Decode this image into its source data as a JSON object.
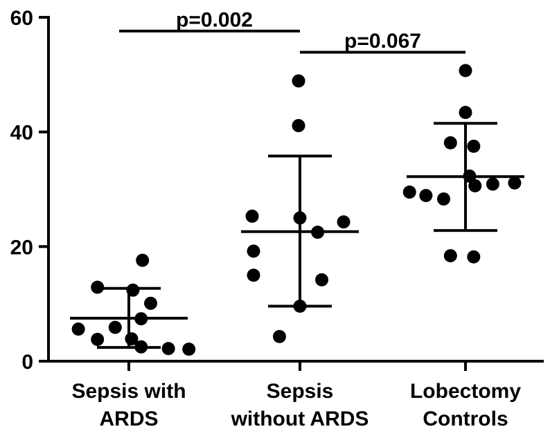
{
  "chart_data": {
    "type": "scatter",
    "categories": [
      [
        "Sepsis with",
        "ARDS"
      ],
      [
        "Sepsis",
        "without ARDS"
      ],
      [
        "Lobectomy",
        "Controls"
      ]
    ],
    "ylim": [
      0,
      60
    ],
    "yticks": [
      "0",
      "20",
      "40",
      "60"
    ],
    "grid": false,
    "series": [
      {
        "points": [
          {
            "dx": -0.37,
            "y": 5.6
          },
          {
            "dx": -0.23,
            "y": 3.8
          },
          {
            "dx": -0.23,
            "y": 12.9
          },
          {
            "dx": -0.1,
            "y": 5.9
          },
          {
            "dx": 0.02,
            "y": 3.9
          },
          {
            "dx": 0.03,
            "y": 12.4
          },
          {
            "dx": 0.09,
            "y": 2.5
          },
          {
            "dx": 0.1,
            "y": 17.6
          },
          {
            "dx": 0.09,
            "y": 7.4
          },
          {
            "dx": 0.16,
            "y": 10.1
          },
          {
            "dx": 0.29,
            "y": 2.2
          },
          {
            "dx": 0.44,
            "y": 2.1
          }
        ],
        "mean": 7.5,
        "sd_upper": 12.7,
        "sd_lower": 2.4
      },
      {
        "points": [
          {
            "dx": -0.35,
            "y": 25.3
          },
          {
            "dx": -0.34,
            "y": 19.2
          },
          {
            "dx": -0.34,
            "y": 15.0
          },
          {
            "dx": -0.15,
            "y": 4.3
          },
          {
            "dx": -0.01,
            "y": 48.9
          },
          {
            "dx": -0.01,
            "y": 41.1
          },
          {
            "dx": 0.0,
            "y": 25.0
          },
          {
            "dx": 0.0,
            "y": 9.6
          },
          {
            "dx": 0.13,
            "y": 22.5
          },
          {
            "dx": 0.16,
            "y": 14.2
          },
          {
            "dx": 0.32,
            "y": 24.3
          }
        ],
        "mean": 22.6,
        "sd_upper": 35.8,
        "sd_lower": 9.6
      },
      {
        "points": [
          {
            "dx": -0.41,
            "y": 29.5
          },
          {
            "dx": -0.29,
            "y": 28.9
          },
          {
            "dx": -0.16,
            "y": 28.3
          },
          {
            "dx": -0.11,
            "y": 38.1
          },
          {
            "dx": -0.11,
            "y": 18.4
          },
          {
            "dx": 0.0,
            "y": 50.7
          },
          {
            "dx": 0.0,
            "y": 43.4
          },
          {
            "dx": 0.03,
            "y": 32.3
          },
          {
            "dx": 0.06,
            "y": 18.2
          },
          {
            "dx": 0.07,
            "y": 30.6
          },
          {
            "dx": 0.06,
            "y": 37.5
          },
          {
            "dx": 0.2,
            "y": 30.9
          },
          {
            "dx": 0.36,
            "y": 31.1
          }
        ],
        "mean": 32.2,
        "sd_upper": 41.5,
        "sd_lower": 22.8
      }
    ],
    "annotations": [
      {
        "text": "p=0.002",
        "from": 0,
        "to": 1,
        "y": 57.6,
        "label_y": 59.6
      },
      {
        "text": "p=0.067",
        "from": 1,
        "to": 2,
        "y": 53.9,
        "label_y": 55.9
      }
    ],
    "colors": {
      "marker": "#000000",
      "line": "#000000"
    }
  }
}
